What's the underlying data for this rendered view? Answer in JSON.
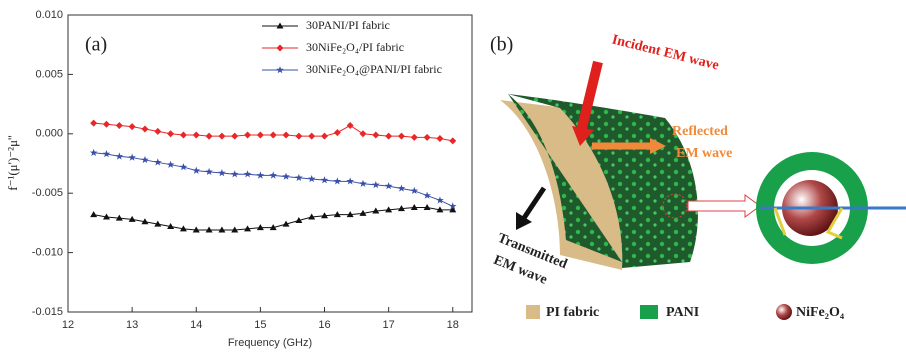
{
  "chart_data": {
    "type": "line",
    "panel_label": "(a)",
    "x_label": "Frequency (GHz)",
    "y_label": "f⁻¹(μ')⁻²μ''",
    "x": [
      12.4,
      12.6,
      12.8,
      13.0,
      13.2,
      13.4,
      13.6,
      13.8,
      14.0,
      14.2,
      14.4,
      14.6,
      14.8,
      15.0,
      15.2,
      15.4,
      15.6,
      15.8,
      16.0,
      16.2,
      16.4,
      16.6,
      16.8,
      17.0,
      17.2,
      17.4,
      17.6,
      17.8,
      18.0
    ],
    "series": [
      {
        "name": "30PANI/PI fabric",
        "color": "#111111",
        "marker": "triangle",
        "values": [
          -0.0068,
          -0.007,
          -0.0071,
          -0.0072,
          -0.0074,
          -0.0076,
          -0.0078,
          -0.008,
          -0.0081,
          -0.0081,
          -0.0081,
          -0.0081,
          -0.008,
          -0.0079,
          -0.0079,
          -0.0076,
          -0.0073,
          -0.007,
          -0.0069,
          -0.0068,
          -0.0068,
          -0.0067,
          -0.0065,
          -0.0064,
          -0.0063,
          -0.0062,
          -0.0062,
          -0.0064,
          -0.0064
        ]
      },
      {
        "name": "30NiFe₂O₄/PI fabric",
        "color": "#e8272a",
        "marker": "diamond",
        "values": [
          0.0009,
          0.0008,
          0.0007,
          0.0006,
          0.0004,
          0.0002,
          0.0,
          -0.0001,
          -0.0001,
          -0.0002,
          -0.0002,
          -0.0002,
          -0.0001,
          -0.0001,
          -0.0001,
          -0.0001,
          -0.0002,
          -0.0002,
          -0.0002,
          0.0001,
          0.0007,
          0.0,
          -0.0001,
          -0.0002,
          -0.0002,
          -0.0003,
          -0.0003,
          -0.0004,
          -0.0006
        ]
      },
      {
        "name": "30NiFe₂O₄@PANI/PI fabric",
        "color": "#3a4fa8",
        "marker": "star",
        "values": [
          -0.0016,
          -0.0017,
          -0.0019,
          -0.002,
          -0.0022,
          -0.0024,
          -0.0026,
          -0.0028,
          -0.0031,
          -0.0032,
          -0.0033,
          -0.0034,
          -0.0034,
          -0.0035,
          -0.0035,
          -0.0036,
          -0.0037,
          -0.0038,
          -0.0039,
          -0.004,
          -0.004,
          -0.0042,
          -0.0043,
          -0.0044,
          -0.0046,
          -0.0048,
          -0.0052,
          -0.0056,
          -0.0061
        ]
      }
    ],
    "xlim": [
      12,
      18.3
    ],
    "xticks": [
      12,
      13,
      14,
      15,
      16,
      17,
      18
    ],
    "ylim": [
      -0.015,
      0.01
    ],
    "yticks": [
      {
        "value": -0.015,
        "label": "-0.015"
      },
      {
        "value": -0.01,
        "label": "-0.010"
      },
      {
        "value": -0.005,
        "label": "-0.005"
      },
      {
        "value": 0,
        "label": "0.000"
      },
      {
        "value": 0.005,
        "label": "0.005"
      },
      {
        "value": 0.01,
        "label": "0.010"
      }
    ],
    "legend": "upper right"
  },
  "diagram": {
    "label": "(b)",
    "incident": "Incident EM wave",
    "reflected": [
      "Reflected",
      "EM wave"
    ],
    "transmitted": [
      "Transmitted",
      "EM wave"
    ],
    "legend": [
      "PI fabric",
      "PANI",
      "NiFe₂O₄"
    ]
  }
}
